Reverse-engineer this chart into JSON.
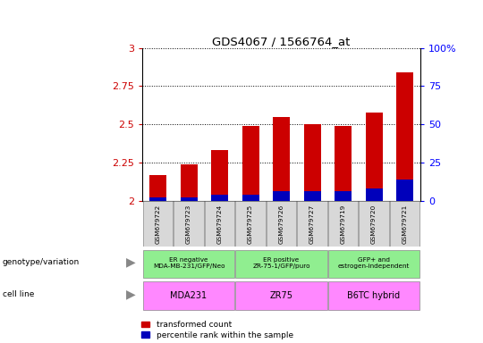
{
  "title": "GDS4067 / 1566764_at",
  "samples": [
    "GSM679722",
    "GSM679723",
    "GSM679724",
    "GSM679725",
    "GSM679726",
    "GSM679727",
    "GSM679719",
    "GSM679720",
    "GSM679721"
  ],
  "red_values": [
    2.17,
    2.24,
    2.33,
    2.49,
    2.55,
    2.5,
    2.49,
    2.58,
    2.84
  ],
  "blue_pct": [
    2,
    2,
    4,
    4,
    6,
    6,
    6,
    8,
    14
  ],
  "ylim": [
    2.0,
    3.0
  ],
  "yticks": [
    2.0,
    2.25,
    2.5,
    2.75,
    3.0
  ],
  "ytick_labels": [
    "2",
    "2.25",
    "2.5",
    "2.75",
    "3"
  ],
  "right_yticks": [
    0,
    25,
    50,
    75,
    100
  ],
  "right_ytick_labels": [
    "0",
    "25",
    "50",
    "75",
    "100%"
  ],
  "genotype_groups": [
    {
      "label": "ER negative\nMDA-MB-231/GFP/Neo",
      "start": 0,
      "end": 3
    },
    {
      "label": "ER positive\nZR-75-1/GFP/puro",
      "start": 3,
      "end": 6
    },
    {
      "label": "GFP+ and\nestrogen-independent",
      "start": 6,
      "end": 9
    }
  ],
  "cell_line_groups": [
    {
      "label": "MDA231",
      "start": 0,
      "end": 3
    },
    {
      "label": "ZR75",
      "start": 3,
      "end": 6
    },
    {
      "label": "B6TC hybrid",
      "start": 6,
      "end": 9
    }
  ],
  "red_color": "#CC0000",
  "blue_color": "#0000BB",
  "bar_width": 0.55,
  "geno_color": "#90EE90",
  "cell_color": "#FF88FF",
  "label_box_color": "#D8D8D8"
}
